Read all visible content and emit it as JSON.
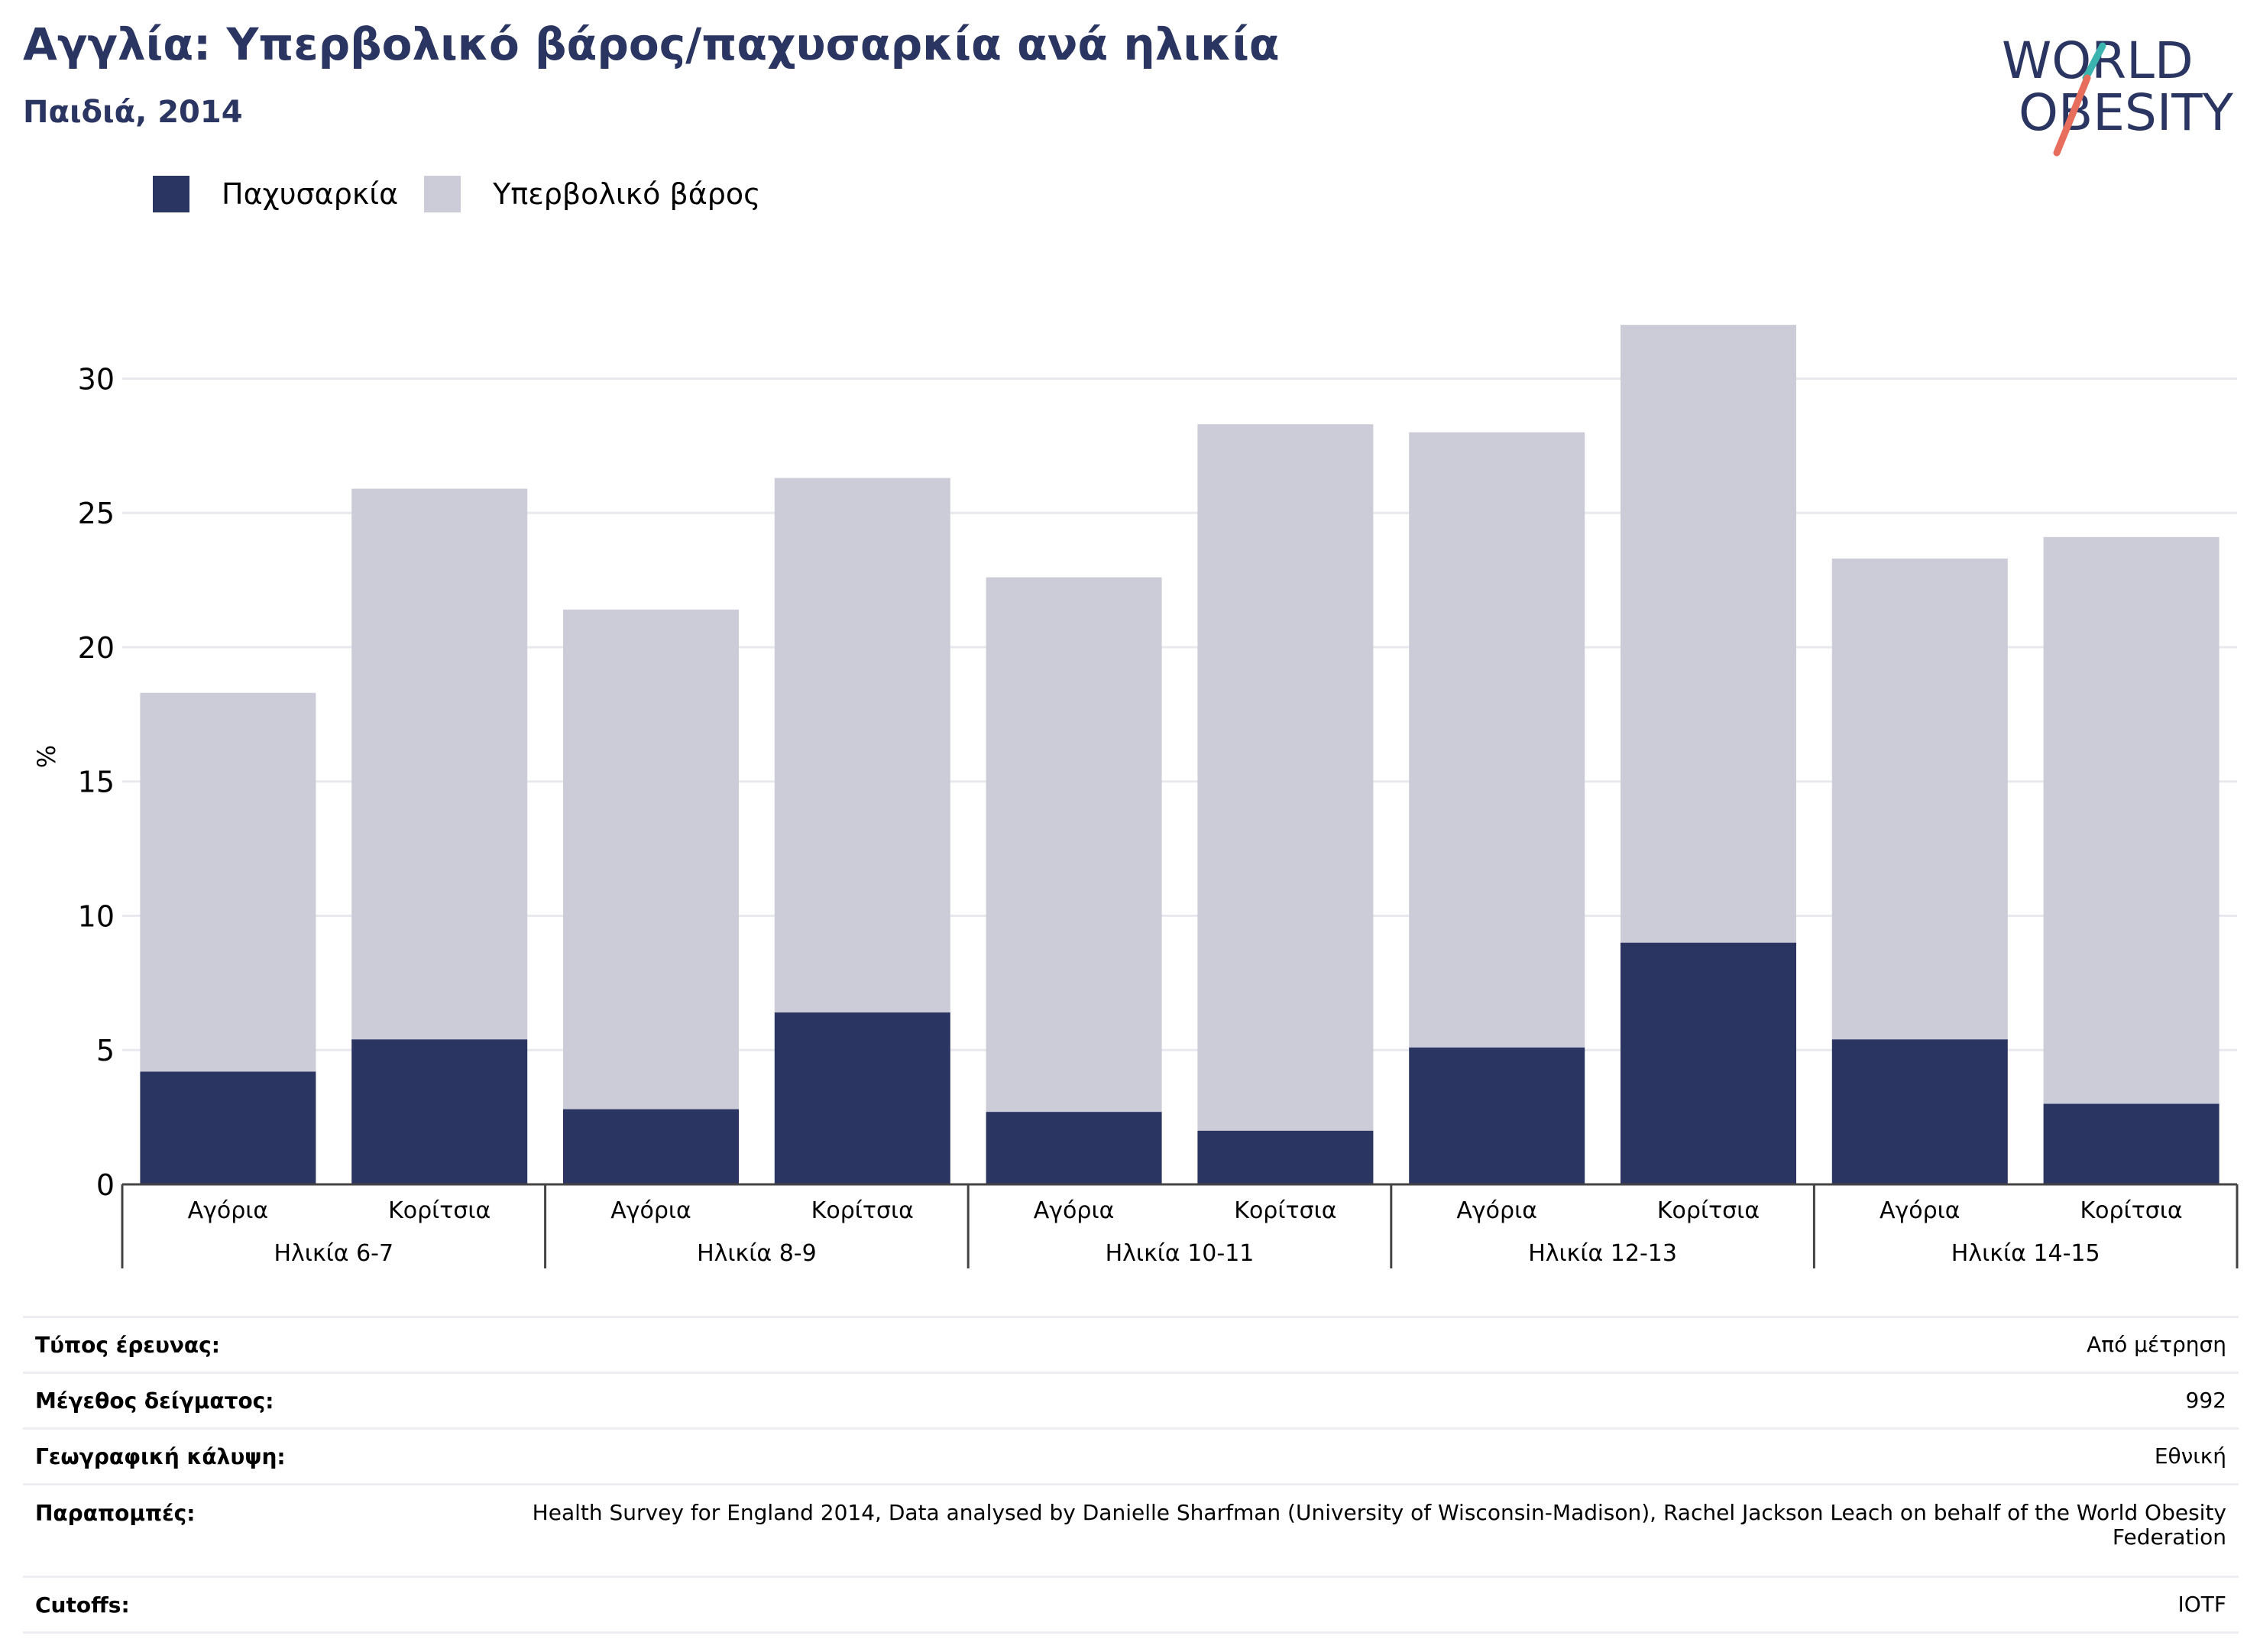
{
  "header": {
    "title": "Αγγλία: Υπερβολικό βάρος/παχυσαρκία ανά ηλικία",
    "subtitle": "Παιδιά, 2014"
  },
  "logo": {
    "line1": "WORLD",
    "line2": "OBESITY",
    "icon": "world-obesity-logo"
  },
  "colors": {
    "obesity": "#2a3561",
    "overweight": "#cbccd8",
    "grid": "#e8e8ef",
    "axis": "#444444"
  },
  "legend": [
    {
      "label": "Παχυσαρκία",
      "color": "#2a3561"
    },
    {
      "label": "Υπερβολικό βάρος",
      "color": "#cbccd8"
    }
  ],
  "chart_data": {
    "type": "bar",
    "stacked": true,
    "ylabel": "%",
    "ylim": [
      0,
      33
    ],
    "yticks": [
      0,
      5,
      10,
      15,
      20,
      25,
      30
    ],
    "grid": true,
    "legend_position": "top-left",
    "groups": [
      "Ηλικία 6-7",
      "Ηλικία 8-9",
      "Ηλικία 10-11",
      "Ηλικία 12-13",
      "Ηλικία 14-15"
    ],
    "categories": [
      "Αγόρια",
      "Κορίτσια",
      "Αγόρια",
      "Κορίτσια",
      "Αγόρια",
      "Κορίτσια",
      "Αγόρια",
      "Κορίτσια",
      "Αγόρια",
      "Κορίτσια"
    ],
    "series": [
      {
        "name": "Παχυσαρκία",
        "values": [
          4.2,
          5.4,
          2.8,
          6.4,
          2.7,
          2.0,
          5.1,
          9.0,
          5.4,
          3.0
        ]
      },
      {
        "name": "Υπερβολικό βάρος",
        "values": [
          14.1,
          20.5,
          18.6,
          19.9,
          19.9,
          26.3,
          22.9,
          23.0,
          17.9,
          21.1
        ]
      }
    ]
  },
  "info": [
    {
      "key": "Τύπος έρευνας:",
      "value": "Από μέτρηση"
    },
    {
      "key": "Μέγεθος δείγματος:",
      "value": "992"
    },
    {
      "key": "Γεωγραφική κάλυψη:",
      "value": "Εθνική"
    },
    {
      "key": "Παραπομπές:",
      "value": "Health Survey for England 2014, Data analysed by Danielle Sharfman (University of Wisconsin-Madison), Rachel Jackson Leach on behalf of the World Obesity Federation"
    },
    {
      "key": "Cutoffs:",
      "value": "IOTF"
    }
  ]
}
